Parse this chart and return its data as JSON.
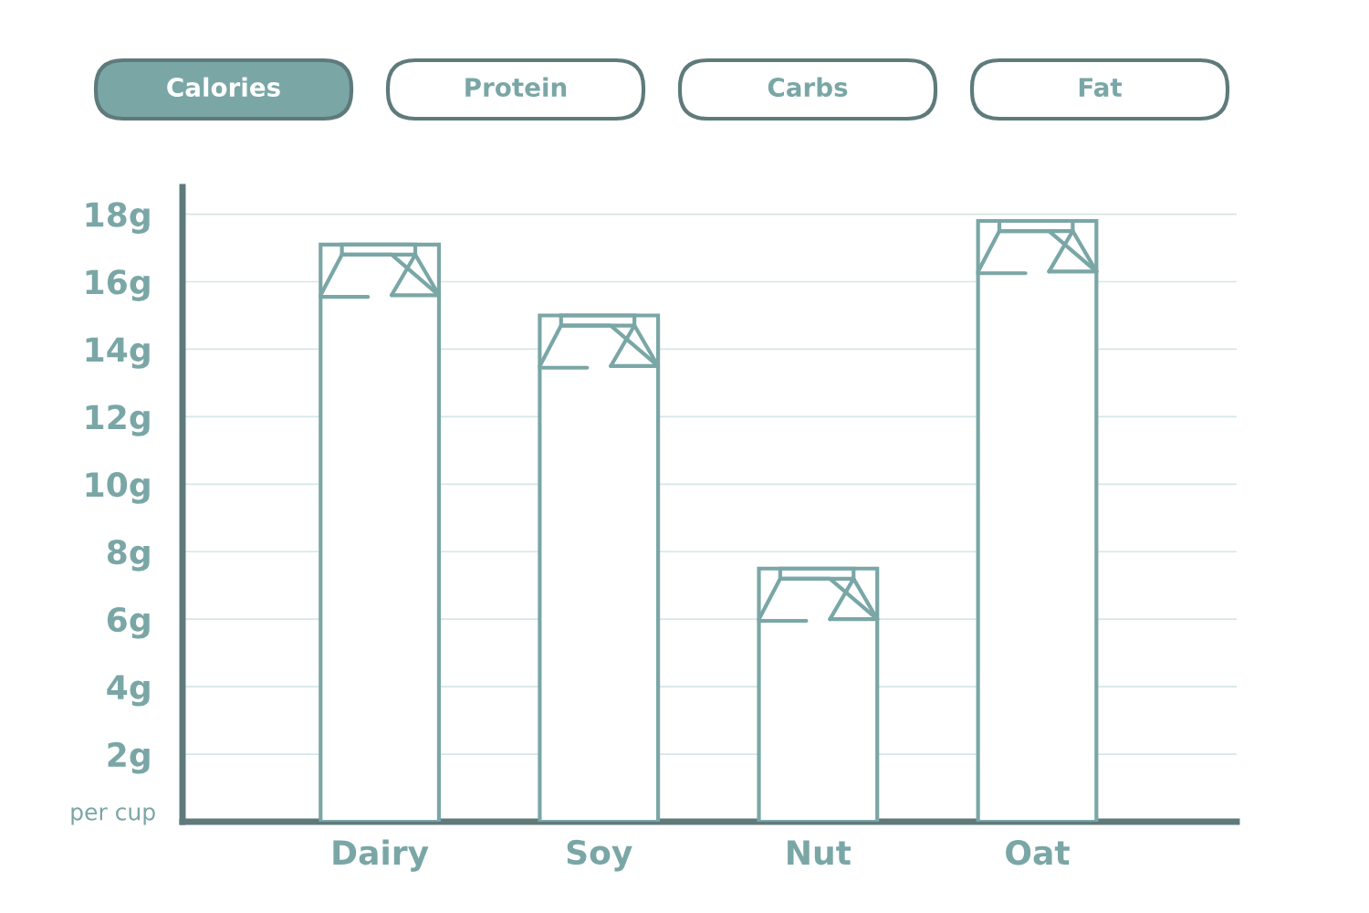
{
  "chart_data": {
    "type": "bar",
    "ylabel": "per cup",
    "categories": [
      "Dairy",
      "Soy",
      "Nut",
      "Oat"
    ],
    "values": [
      17.1,
      15.0,
      7.5,
      17.8
    ],
    "color": "#7aa6a6",
    "ylim": [
      0,
      18.8
    ],
    "yticks": [
      {
        "value": 2,
        "label": "2g"
      },
      {
        "value": 4,
        "label": "4g"
      },
      {
        "value": 6,
        "label": "6g"
      },
      {
        "value": 8,
        "label": "8g"
      },
      {
        "value": 10,
        "label": "10g"
      },
      {
        "value": 12,
        "label": "12g"
      },
      {
        "value": 14,
        "label": "14g"
      },
      {
        "value": 16,
        "label": "16g"
      },
      {
        "value": 18,
        "label": "18g"
      }
    ],
    "grid": "y",
    "annotations": [
      "Calories",
      "Protein",
      "Carbs",
      "Fat"
    ]
  }
}
